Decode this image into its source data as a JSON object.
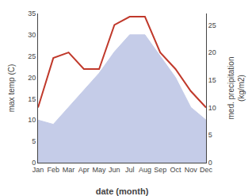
{
  "chart_data": {
    "type": "line",
    "xlabel": "date (month)",
    "ylabel": "max temp (C)",
    "y2label": "med. precipitation\n(kg/m2)",
    "categories": [
      "Jan",
      "Feb",
      "Mar",
      "Apr",
      "May",
      "Jun",
      "Jul",
      "Aug",
      "Sep",
      "Oct",
      "Nov",
      "Dec"
    ],
    "series": [
      {
        "type": "area",
        "color": "#c5cce8",
        "values": [
          10,
          9,
          13,
          17,
          21,
          26,
          30,
          30,
          25,
          20,
          13,
          10
        ]
      },
      {
        "type": "line",
        "color": "#c0392b",
        "axis": "y2",
        "values": [
          10,
          19,
          20,
          17,
          17,
          25,
          26.5,
          26.5,
          20,
          17,
          13,
          10
        ]
      }
    ],
    "ylim": [
      0,
      35
    ],
    "yticks": [
      0,
      5,
      10,
      15,
      20,
      25,
      30,
      35
    ],
    "y2lim": [
      0,
      27.08
    ],
    "y2ticks": [
      0,
      5,
      10,
      15,
      20,
      25
    ],
    "grid": false
  }
}
